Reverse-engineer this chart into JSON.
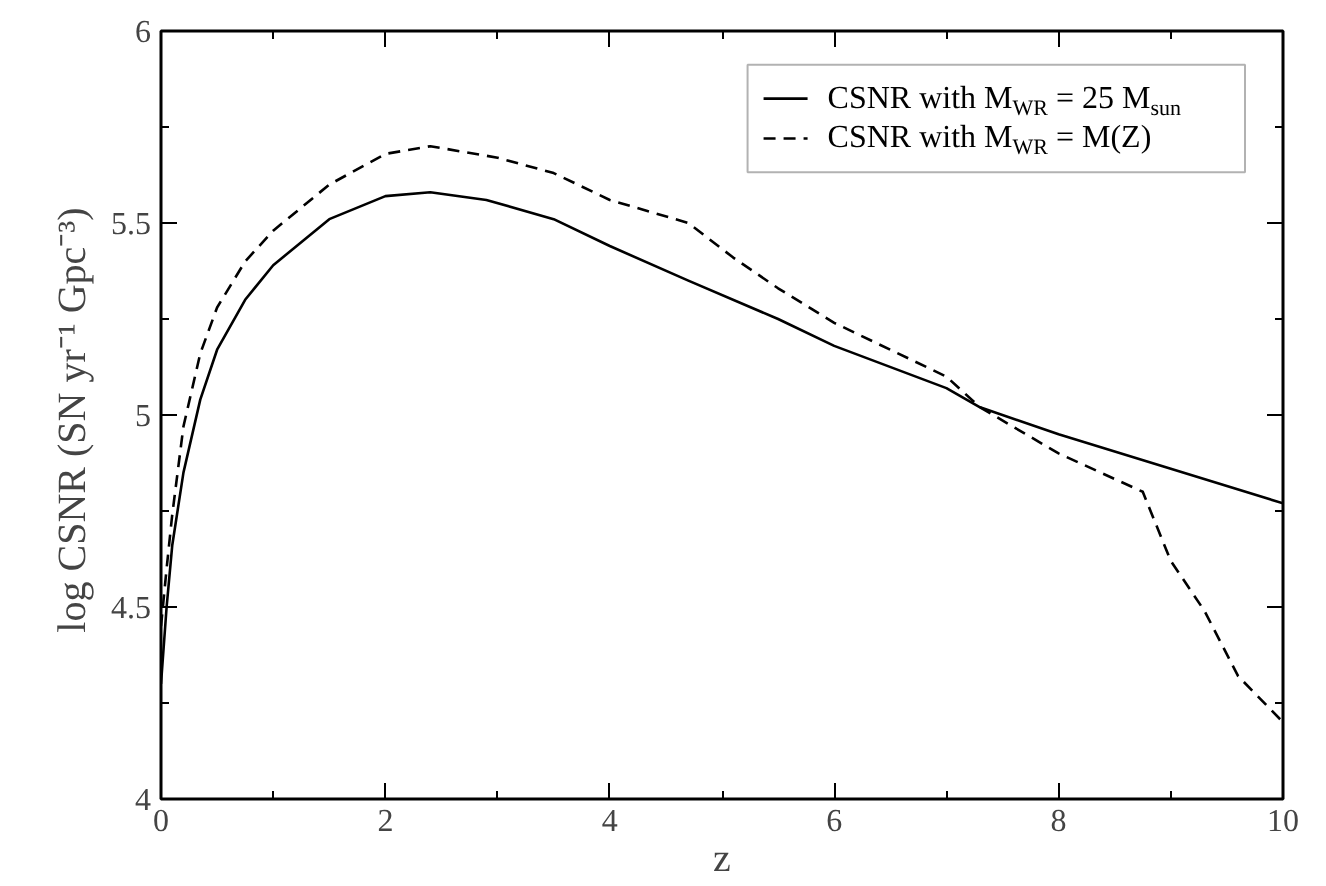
{
  "chart_data": {
    "type": "line",
    "xlabel": "z",
    "ylabel": "log CSNR  (SN yr⁻¹ Gpc⁻³)",
    "xlim": [
      0,
      10
    ],
    "xticks": [
      0,
      2,
      4,
      6,
      8,
      10
    ],
    "ylim": [
      4,
      6
    ],
    "yticks": [
      4,
      4.5,
      5,
      5.5,
      6
    ],
    "grid": false,
    "legend": "top right",
    "marker": "none",
    "series": [
      {
        "name": "CSNR with M$_{WR}$ = 25 M$_{sun}$",
        "color": "#000000",
        "line_style": "solid",
        "x": [
          0,
          0.05,
          0.1,
          0.2,
          0.35,
          0.5,
          0.75,
          1,
          1.5,
          2,
          2.4,
          2.9,
          3.5,
          4,
          4.7,
          5.5,
          6,
          7,
          7.3,
          8,
          9,
          10
        ],
        "values": [
          4.3,
          4.5,
          4.66,
          4.85,
          5.04,
          5.17,
          5.3,
          5.39,
          5.51,
          5.57,
          5.58,
          5.56,
          5.51,
          5.44,
          5.35,
          5.25,
          5.18,
          5.07,
          5.02,
          4.95,
          4.86,
          4.77
        ]
      },
      {
        "name": "CSNR with M$_{WR}$ = M(Z)",
        "color": "#000000",
        "line_style": "dashed",
        "x": [
          0,
          0.05,
          0.1,
          0.2,
          0.35,
          0.5,
          0.75,
          1,
          1.5,
          2,
          2.4,
          3,
          3.5,
          4,
          4.7,
          5.1,
          5.5,
          6,
          7,
          7.3,
          8,
          8.75,
          9,
          9.3,
          9.6,
          10
        ],
        "values": [
          4.45,
          4.6,
          4.74,
          4.97,
          5.16,
          5.28,
          5.4,
          5.48,
          5.6,
          5.68,
          5.7,
          5.67,
          5.63,
          5.56,
          5.5,
          5.41,
          5.33,
          5.24,
          5.1,
          5.02,
          4.9,
          4.8,
          4.62,
          4.49,
          4.32,
          4.2
        ]
      }
    ]
  }
}
